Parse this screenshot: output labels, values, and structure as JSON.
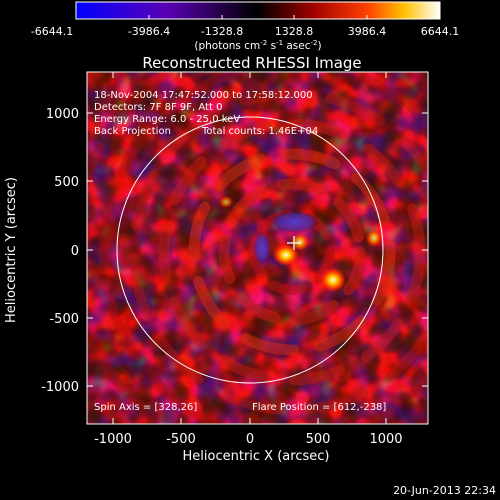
{
  "colorbar": {
    "ticks": [
      "-6644.1",
      "-3986.4",
      "-1328.8",
      "1328.8",
      "3986.4",
      "6644.1"
    ],
    "units_main": "(photons cm",
    "units_exp1": "-2",
    "units_mid": " s",
    "units_exp2": "-1",
    "units_end": " asec",
    "units_exp3": "-2",
    "units_close": ")"
  },
  "title": "Reconstructed RHESSI Image",
  "info": {
    "time_range": "18-Nov-2004 17:47:52.000 to 17:58:12.000",
    "detectors": "Detectors: 7F 8F 9F, Att 0",
    "energy": "Energy Range: 6.0 - 25.0 keV",
    "method": "Back Projection",
    "counts": "Total counts: 1.46E+04",
    "spin_axis": "Spin Axis = [328,26]",
    "flare_position": "Flare Position = [612,-238]"
  },
  "axes": {
    "xlabel": "Heliocentric X (arcsec)",
    "ylabel": "Heliocentric Y (arcsec)",
    "x_ticks": [
      "-1000",
      "-500",
      "0",
      "500",
      "1000"
    ],
    "y_ticks": [
      "1000",
      "500",
      "0",
      "-500",
      "-1000"
    ]
  },
  "footer_timestamp": "20-Jun-2013 22:34",
  "colors": {
    "background": "#000000",
    "foreground": "#ffffff",
    "cmap_low": "#0000ff",
    "cmap_mid": "#000000",
    "cmap_high": "#ffffff"
  }
}
